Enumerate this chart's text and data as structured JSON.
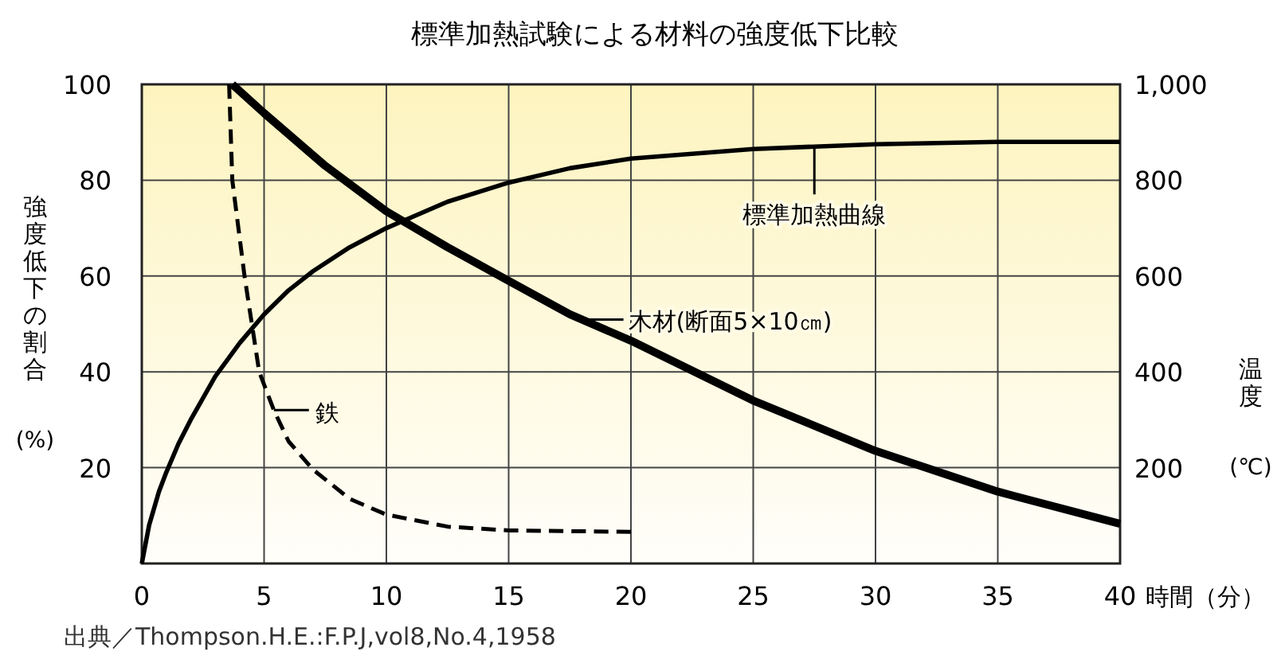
{
  "chart_data": {
    "type": "line",
    "title": "標準加熱試験による材料の強度低下比較",
    "xlabel": "時間（分）",
    "ylabel": "強度低下の割合 (%)",
    "y2label": "温度 (℃)",
    "xlim": [
      0,
      40
    ],
    "xticks": [
      0,
      5,
      10,
      15,
      20,
      25,
      30,
      35,
      40
    ],
    "ylim": [
      0,
      100
    ],
    "yticks": [
      20,
      40,
      60,
      80,
      100
    ],
    "y2lim": [
      0,
      1000
    ],
    "y2ticks": [
      200,
      400,
      600,
      800,
      {
        "value": 1000,
        "label": "1,000"
      }
    ],
    "grid": true,
    "series": [
      {
        "color": "#000000",
        "axis": "y2",
        "x": [
          0,
          0.3,
          0.7,
          1,
          1.5,
          2,
          3,
          4,
          5,
          6,
          7,
          8.5,
          10,
          12.5,
          15,
          17.5,
          20,
          25,
          30,
          35,
          40
        ],
        "values": [
          0,
          80,
          150,
          190,
          250,
          300,
          390,
          460,
          520,
          570,
          610,
          660,
          700,
          755,
          795,
          825,
          845,
          865,
          875,
          880,
          880
        ]
      },
      {
        "color": "#000000",
        "x": [
          3.7,
          5,
          7.5,
          10,
          12.5,
          15,
          17.5,
          20,
          25,
          30,
          35,
          40
        ],
        "values": [
          100,
          94,
          83,
          73.5,
          66,
          59,
          52,
          46.5,
          34,
          23.5,
          15,
          8.3
        ]
      },
      {
        "color": "#000000",
        "line_style": "dashed",
        "x": [
          3.57,
          3.7,
          4.2,
          4.5,
          4.8,
          5.4,
          6,
          7,
          8.5,
          10,
          12.5,
          15,
          20
        ],
        "values": [
          100,
          80,
          60,
          50,
          40,
          32,
          25.5,
          19.6,
          13.5,
          10.2,
          7.7,
          6.9,
          6.6
        ]
      }
    ],
    "annotations": [
      {
        "text": "標準加熱曲線",
        "x": 27.5,
        "y": 87
      },
      {
        "text": "木材(断面5×10㎝)",
        "x": 18,
        "y": 50.9
      },
      {
        "text": "鉄",
        "x": 5.4,
        "y": 32
      },
      "出典／Thompson.H.E.:F.P.J,vol8,No.4,1958"
    ]
  }
}
